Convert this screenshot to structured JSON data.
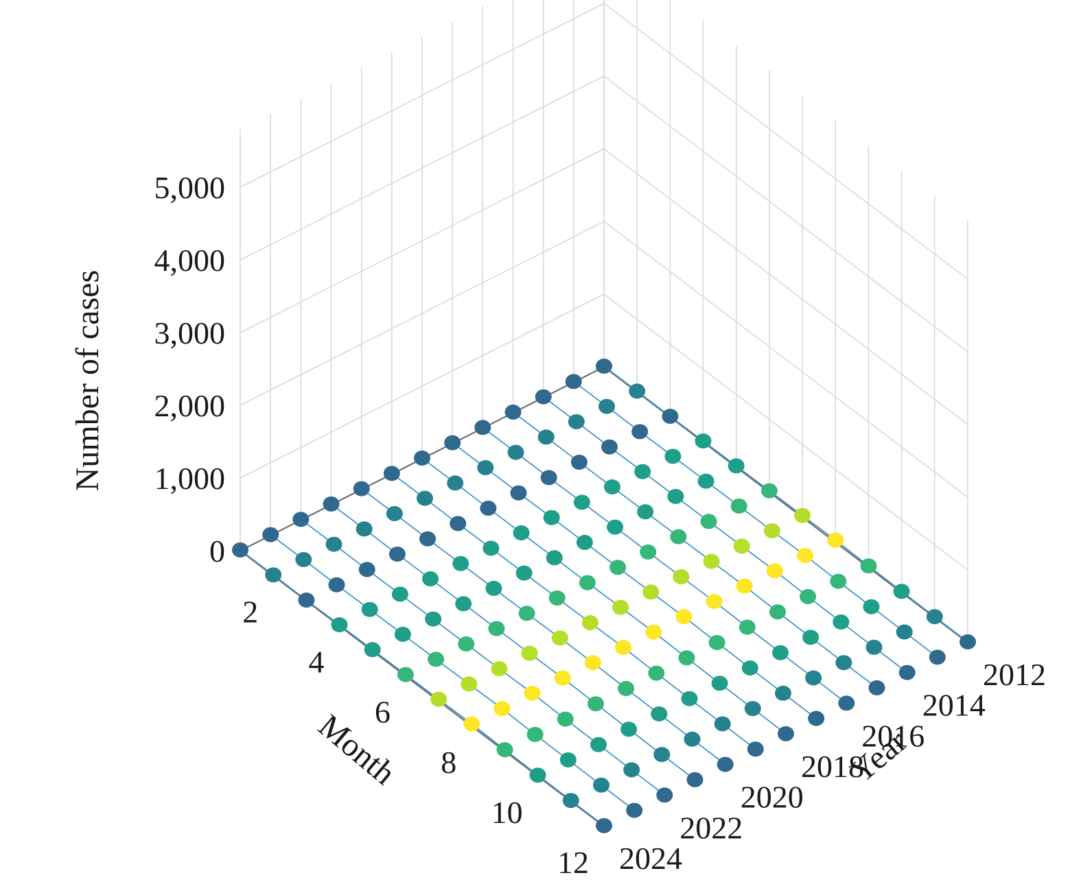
{
  "chart_data": {
    "type": "scatter3d",
    "x_axis": {
      "label": "Month",
      "ticks": [
        "2",
        "4",
        "6",
        "8",
        "10",
        "12"
      ],
      "range": [
        1,
        12
      ]
    },
    "y_axis": {
      "label": "Year",
      "ticks": [
        "2012",
        "2014",
        "2016",
        "2018",
        "2020",
        "2022",
        "2024"
      ],
      "range": [
        2012,
        2024
      ]
    },
    "z_axis": {
      "label": "Number of cases",
      "ticks": [
        "0",
        "1,000",
        "2,000",
        "3,000",
        "4,000",
        "5,000"
      ],
      "range": [
        0,
        5000
      ]
    },
    "grid": true,
    "line_color": "#3b8fc4",
    "colorscale": [
      "#440154",
      "#482878",
      "#3e4989",
      "#31688e",
      "#26828e",
      "#1f9e89",
      "#35b779",
      "#6ece58",
      "#b5de2b",
      "#fde725"
    ],
    "series": [
      {
        "year": 2012,
        "values": [
          10,
          12,
          10,
          15,
          18,
          20,
          25,
          30,
          20,
          15,
          12,
          10
        ]
      },
      {
        "year": 2013,
        "values": [
          10,
          12,
          10,
          15,
          18,
          20,
          25,
          30,
          20,
          15,
          12,
          10
        ]
      },
      {
        "year": 2014,
        "values": [
          10,
          12,
          10,
          15,
          18,
          20,
          25,
          30,
          20,
          15,
          12,
          10
        ]
      },
      {
        "year": 2015,
        "values": [
          10,
          12,
          10,
          15,
          18,
          20,
          25,
          30,
          20,
          15,
          12,
          10
        ]
      },
      {
        "year": 2016,
        "values": [
          10,
          12,
          10,
          15,
          18,
          20,
          25,
          30,
          20,
          15,
          12,
          10
        ]
      },
      {
        "year": 2017,
        "values": [
          10,
          12,
          10,
          15,
          18,
          20,
          25,
          30,
          20,
          15,
          12,
          10
        ]
      },
      {
        "year": 2018,
        "values": [
          10,
          12,
          10,
          15,
          18,
          20,
          25,
          30,
          20,
          15,
          12,
          10
        ]
      },
      {
        "year": 2019,
        "values": [
          10,
          12,
          10,
          15,
          18,
          20,
          25,
          30,
          20,
          15,
          12,
          10
        ]
      },
      {
        "year": 2020,
        "values": [
          10,
          12,
          10,
          15,
          18,
          20,
          25,
          30,
          20,
          15,
          12,
          10
        ]
      },
      {
        "year": 2021,
        "values": [
          10,
          12,
          10,
          15,
          18,
          20,
          25,
          30,
          20,
          15,
          12,
          10
        ]
      },
      {
        "year": 2022,
        "values": [
          10,
          12,
          10,
          15,
          18,
          20,
          25,
          30,
          20,
          15,
          12,
          10
        ]
      },
      {
        "year": 2023,
        "values": [
          10,
          12,
          10,
          15,
          18,
          20,
          25,
          30,
          20,
          15,
          12,
          10
        ]
      },
      {
        "year": 2024,
        "values": [
          10,
          12,
          10,
          15,
          18,
          20,
          25,
          30,
          20,
          15,
          12,
          10
        ]
      }
    ]
  }
}
